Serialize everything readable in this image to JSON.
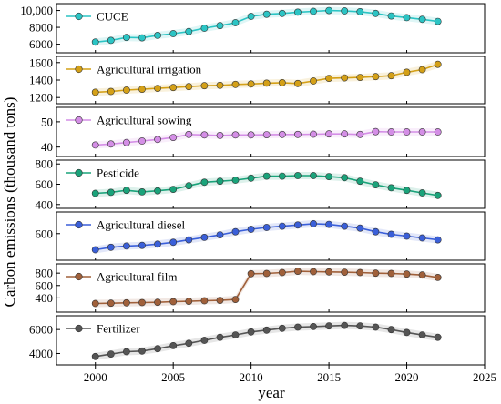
{
  "chart_data": {
    "type": "line",
    "xlabel": "year",
    "ylabel": "Carbon emissions (thousand tons)",
    "xlim": [
      1997.5,
      2025
    ],
    "xticks": [
      2000,
      2005,
      2010,
      2015,
      2020,
      2025
    ],
    "x": [
      2000,
      2001,
      2002,
      2003,
      2004,
      2005,
      2006,
      2007,
      2008,
      2009,
      2010,
      2011,
      2012,
      2013,
      2014,
      2015,
      2016,
      2017,
      2018,
      2019,
      2020,
      2021,
      2022
    ],
    "panels": [
      {
        "name": "CUCE",
        "color": "#2bc4c4",
        "ylim": [
          5200,
          10600
        ],
        "yticks": [
          6000,
          8000,
          10000
        ],
        "ytick_labels": [
          "6000",
          "8000",
          "10,000"
        ],
        "values": [
          6250,
          6450,
          6800,
          6750,
          7050,
          7250,
          7500,
          7900,
          8200,
          8550,
          9300,
          9550,
          9650,
          9800,
          9900,
          10000,
          9950,
          9850,
          9650,
          9350,
          9150,
          8950,
          8700
        ]
      },
      {
        "name": "Agricultural irrigation",
        "color": "#d4a017",
        "ylim": [
          1150,
          1650
        ],
        "yticks": [
          1200,
          1400,
          1600
        ],
        "ytick_labels": [
          "1200",
          "1400",
          "1600"
        ],
        "values": [
          1260,
          1270,
          1285,
          1295,
          1305,
          1315,
          1325,
          1335,
          1340,
          1350,
          1355,
          1365,
          1370,
          1360,
          1390,
          1420,
          1425,
          1430,
          1440,
          1450,
          1490,
          1520,
          1580
        ]
      },
      {
        "name": "Agricultural sowing",
        "color": "#d48ee6",
        "ylim": [
          37,
          55
        ],
        "yticks": [
          40,
          50
        ],
        "ytick_labels": [
          "40",
          "50"
        ],
        "values": [
          40.8,
          41.2,
          41.8,
          42.4,
          43.0,
          43.8,
          45.0,
          44.8,
          44.6,
          44.8,
          44.8,
          44.9,
          45.0,
          45.0,
          45.1,
          45.2,
          45.2,
          45.0,
          46.1,
          46.0,
          46.0,
          46.0,
          46.0
        ]
      },
      {
        "name": "Pesticide",
        "color": "#1aa37a",
        "ylim": [
          380,
          820
        ],
        "yticks": [
          400,
          600,
          800
        ],
        "ytick_labels": [
          "400",
          "600",
          "800"
        ],
        "values": [
          510,
          520,
          540,
          525,
          535,
          550,
          585,
          620,
          630,
          640,
          660,
          680,
          680,
          685,
          685,
          675,
          665,
          630,
          595,
          565,
          540,
          515,
          490
        ]
      },
      {
        "name": "Agricultural diesel",
        "color": "#3a5fd9",
        "ylim": [
          400,
          760
        ],
        "yticks": [
          600
        ],
        "ytick_labels": [
          "600"
        ],
        "values": [
          470,
          490,
          500,
          505,
          515,
          530,
          550,
          570,
          590,
          615,
          635,
          650,
          660,
          670,
          680,
          675,
          660,
          645,
          615,
          595,
          580,
          565,
          550
        ]
      },
      {
        "name": "Agricultural film",
        "color": "#a0603a",
        "ylim": [
          200,
          920
        ],
        "yticks": [
          400,
          600,
          800
        ],
        "ytick_labels": [
          "400",
          "600",
          "800"
        ],
        "values": [
          310,
          315,
          320,
          325,
          330,
          340,
          345,
          355,
          360,
          375,
          790,
          795,
          810,
          830,
          825,
          820,
          815,
          810,
          800,
          795,
          785,
          770,
          730
        ]
      },
      {
        "name": "Fertilizer",
        "color": "#555555",
        "ylim": [
          3200,
          7000
        ],
        "yticks": [
          4000,
          6000
        ],
        "ytick_labels": [
          "4000",
          "6000"
        ],
        "values": [
          3750,
          3950,
          4150,
          4200,
          4400,
          4650,
          4850,
          5100,
          5350,
          5550,
          5800,
          5950,
          6100,
          6200,
          6250,
          6300,
          6350,
          6300,
          6200,
          6000,
          5750,
          5550,
          5350
        ]
      }
    ]
  }
}
